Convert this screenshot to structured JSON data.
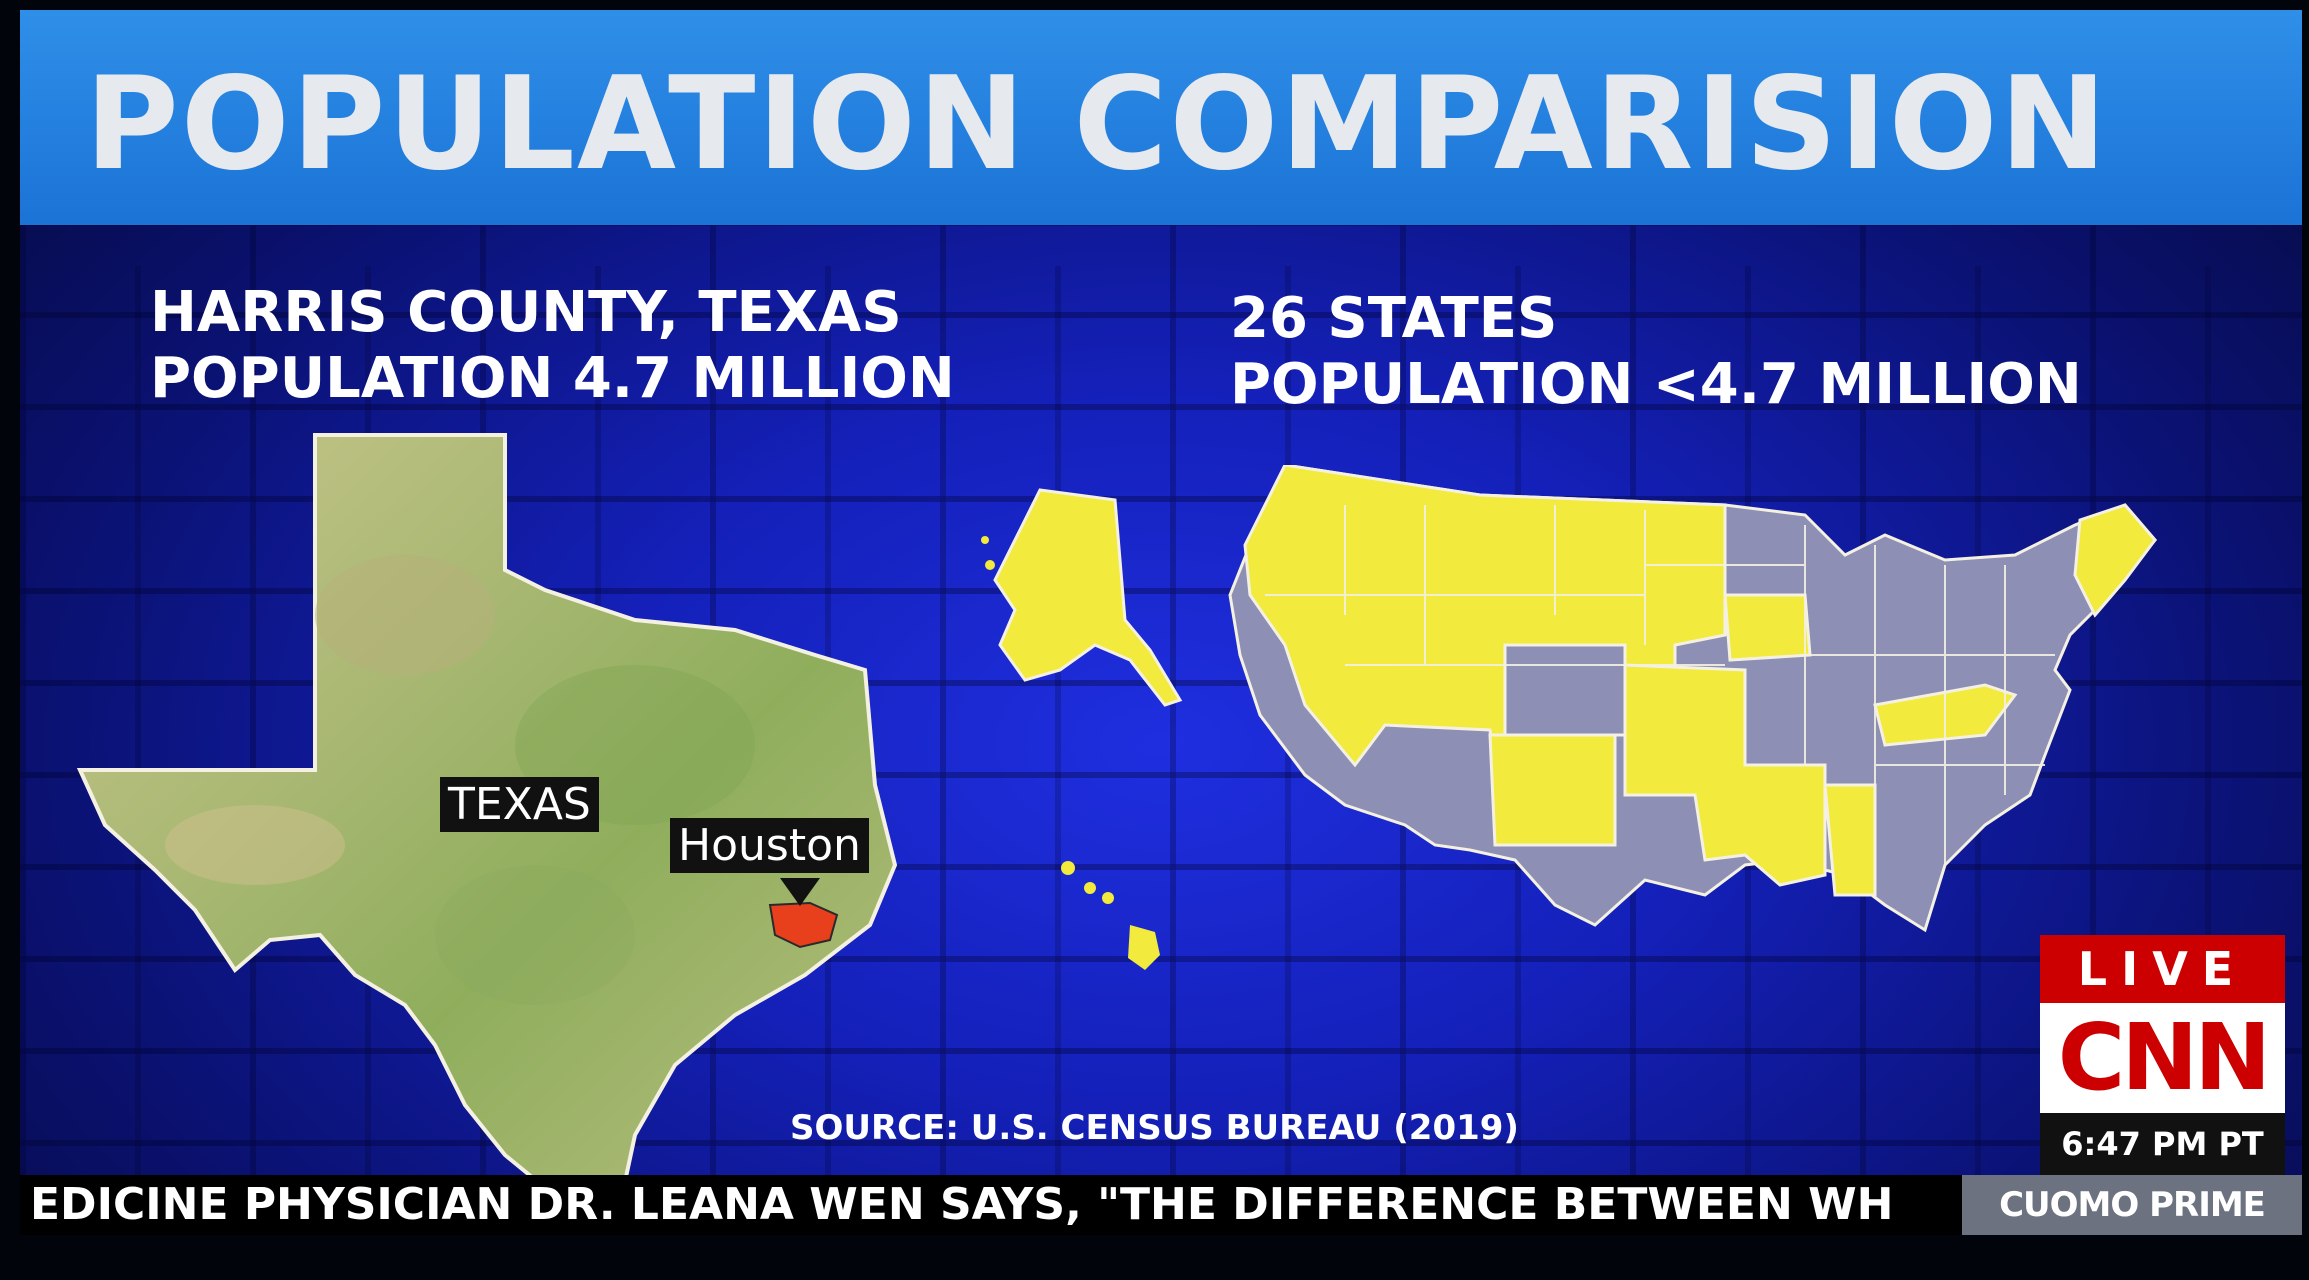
{
  "title": "POPULATION COMPARISION",
  "left_heading": {
    "line1": "HARRIS COUNTY, TEXAS",
    "line2": "POPULATION 4.7 MILLION"
  },
  "right_heading": {
    "line1": "26 STATES",
    "line2": "POPULATION <4.7 MILLION"
  },
  "texas_map": {
    "state_label": "TEXAS",
    "city_label": "Houston",
    "highlight_color": "#e8401c"
  },
  "us_map": {
    "highlight_color": "#f2ea3c",
    "other_color": "#8d8fb4"
  },
  "source": "SOURCE: U.S. CENSUS BUREAU (2019)",
  "bug": {
    "live": "LIVE",
    "network": "CNN",
    "time": "6:47 PM PT"
  },
  "ticker": {
    "text": "EDICINE PHYSICIAN DR. LEANA WEN SAYS, \"THE DIFFERENCE BETWEEN WH",
    "show": "CUOMO PRIME TIME"
  }
}
